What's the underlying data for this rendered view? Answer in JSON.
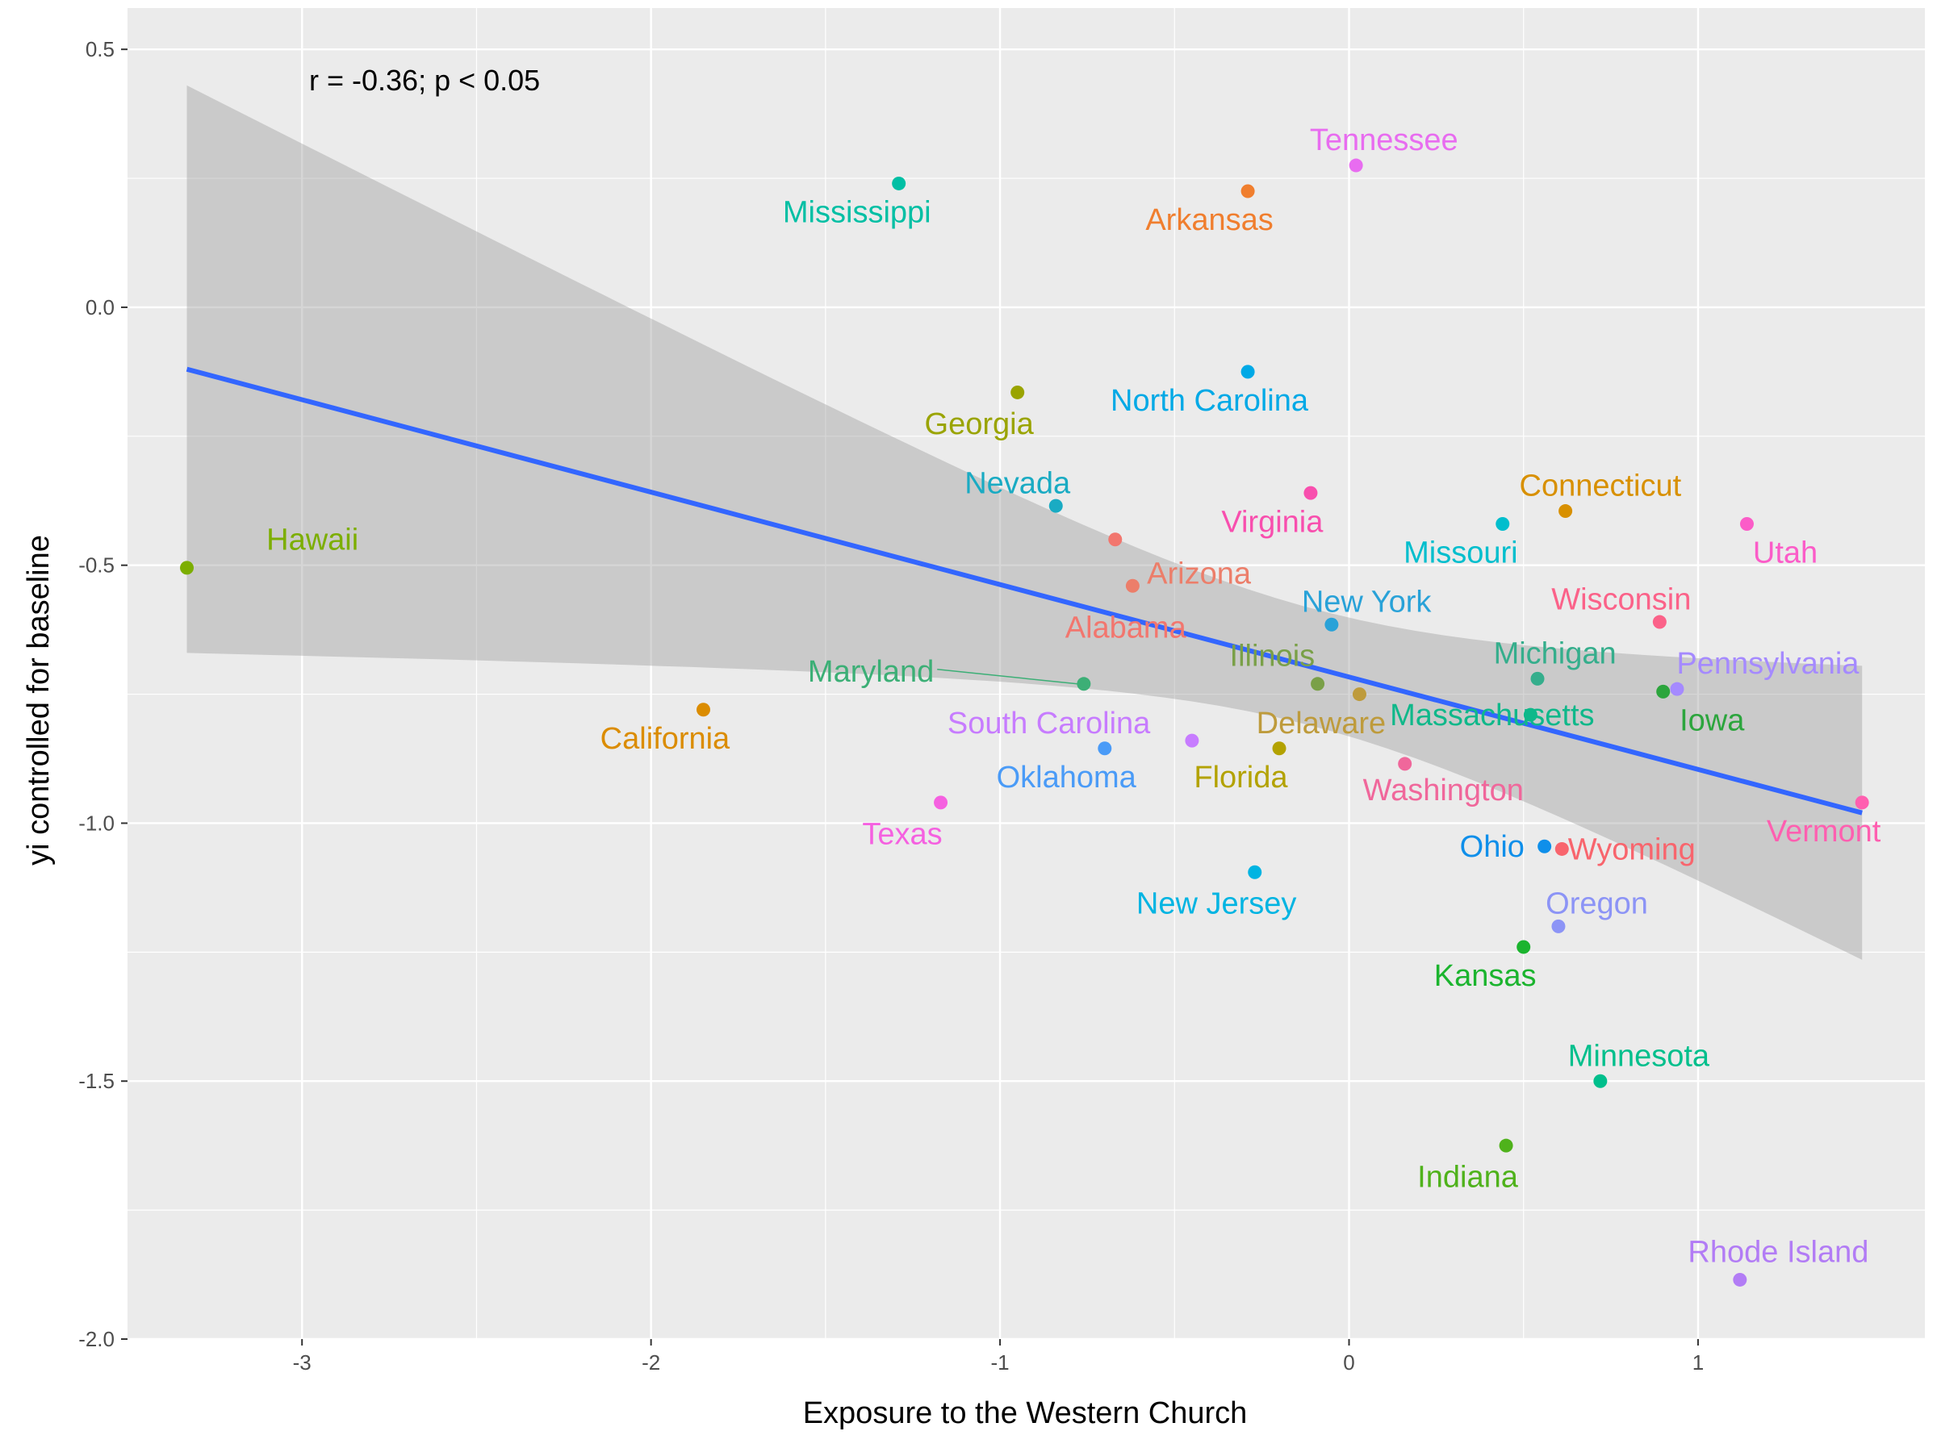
{
  "chart_data": {
    "type": "scatter",
    "title": "",
    "xlabel": "Exposure to the Western Church",
    "ylabel": "yi controlled for baseline",
    "xlim": [
      -3.5,
      1.65
    ],
    "ylim": [
      -2.0,
      0.58
    ],
    "x_ticks": [
      -3,
      -2,
      -1,
      0,
      1
    ],
    "x_tick_labels": [
      "-3",
      "-2",
      "-1",
      "0",
      "1"
    ],
    "y_ticks": [
      -2.0,
      -1.5,
      -1.0,
      -0.5,
      0.0,
      0.5
    ],
    "y_tick_labels": [
      "-2.0",
      "-1.5",
      "-1.0",
      "-0.5",
      "0.0",
      "0.5"
    ],
    "grid": true,
    "annotation": "r = -0.36; p < 0.05",
    "trend": {
      "x": [
        -3.33,
        1.47
      ],
      "y": [
        -0.12,
        -0.98
      ],
      "band_upper_left": 0.43,
      "band_lower_left": -0.67,
      "band_upper_right": -0.7,
      "band_lower_right": -1.27,
      "band_mid_x": 0.0,
      "band_mid_upper": -0.59,
      "band_mid_lower": -0.82,
      "color": "#3366FF",
      "band_color": "#999999"
    },
    "points": [
      {
        "name": "Hawaii",
        "x": -3.33,
        "y": -0.505,
        "color": "#7CAE00",
        "lx": -2.97,
        "ly": -0.45,
        "link": false
      },
      {
        "name": "Mississippi",
        "x": -1.29,
        "y": 0.24,
        "color": "#00BFA4",
        "lx": -1.41,
        "ly": 0.185,
        "link": false
      },
      {
        "name": "Arkansas",
        "x": -0.29,
        "y": 0.225,
        "color": "#F07E2E",
        "lx": -0.4,
        "ly": 0.17,
        "link": false
      },
      {
        "name": "Tennessee",
        "x": 0.02,
        "y": 0.275,
        "color": "#E86CF0",
        "lx": 0.1,
        "ly": 0.325,
        "link": false
      },
      {
        "name": "North Carolina",
        "x": -0.29,
        "y": -0.125,
        "color": "#00A9E6",
        "lx": -0.4,
        "ly": -0.18,
        "link": false
      },
      {
        "name": "Georgia",
        "x": -0.95,
        "y": -0.165,
        "color": "#9AA400",
        "lx": -1.06,
        "ly": -0.225,
        "link": false
      },
      {
        "name": "Nevada",
        "x": -0.84,
        "y": -0.385,
        "color": "#1AABC3",
        "lx": -0.95,
        "ly": -0.34,
        "link": false
      },
      {
        "name": "Virginia",
        "x": -0.11,
        "y": -0.36,
        "color": "#F84FAE",
        "lx": -0.22,
        "ly": -0.415,
        "link": false
      },
      {
        "name": "Connecticut",
        "x": 0.62,
        "y": -0.395,
        "color": "#D89000",
        "lx": 0.72,
        "ly": -0.345,
        "link": false
      },
      {
        "name": "Missouri",
        "x": 0.44,
        "y": -0.42,
        "color": "#00BECD",
        "lx": 0.32,
        "ly": -0.475,
        "link": false
      },
      {
        "name": "Utah",
        "x": 1.14,
        "y": -0.42,
        "color": "#FB5CC8",
        "lx": 1.25,
        "ly": -0.475,
        "link": false
      },
      {
        "name": "Arizona",
        "x": -0.62,
        "y": -0.54,
        "color": "#EC7E6A",
        "lx": -0.43,
        "ly": -0.515,
        "link": false
      },
      {
        "name": "Alabama",
        "x": -0.67,
        "y": -0.45,
        "color": "#F2766E",
        "lx": -0.64,
        "ly": -0.62,
        "link": false
      },
      {
        "name": "New York",
        "x": -0.05,
        "y": -0.615,
        "color": "#29A2D8",
        "lx": 0.05,
        "ly": -0.57,
        "link": false
      },
      {
        "name": "Wisconsin",
        "x": 0.89,
        "y": -0.61,
        "color": "#FB6289",
        "lx": 0.78,
        "ly": -0.565,
        "link": false
      },
      {
        "name": "Illinois",
        "x": -0.09,
        "y": -0.73,
        "color": "#7AA048",
        "lx": -0.22,
        "ly": -0.675,
        "link": false
      },
      {
        "name": "Michigan",
        "x": 0.54,
        "y": -0.72,
        "color": "#35AE8C",
        "lx": 0.59,
        "ly": -0.67,
        "link": false
      },
      {
        "name": "Pennsylvania",
        "x": 0.94,
        "y": -0.74,
        "color": "#A58AFF",
        "lx": 1.2,
        "ly": -0.69,
        "link": false
      },
      {
        "name": "Maryland",
        "x": -0.76,
        "y": -0.73,
        "color": "#3CAF76",
        "lx": -1.18,
        "ly": -0.705,
        "link": true
      },
      {
        "name": "Delaware",
        "x": 0.03,
        "y": -0.75,
        "color": "#BE9B3C",
        "lx": -0.08,
        "ly": -0.805,
        "link": false
      },
      {
        "name": "Iowa",
        "x": 0.9,
        "y": -0.745,
        "color": "#2CA53D",
        "lx": 1.04,
        "ly": -0.8,
        "link": false
      },
      {
        "name": "Massachusetts",
        "x": 0.52,
        "y": -0.79,
        "color": "#0FB88A",
        "lx": 0.41,
        "ly": -0.79,
        "link": false
      },
      {
        "name": "South Carolina",
        "x": -0.45,
        "y": -0.84,
        "color": "#C77CFF",
        "lx": -0.86,
        "ly": -0.805,
        "link": false
      },
      {
        "name": "Florida",
        "x": -0.2,
        "y": -0.855,
        "color": "#B3A200",
        "lx": -0.31,
        "ly": -0.91,
        "link": false
      },
      {
        "name": "Washington",
        "x": 0.16,
        "y": -0.885,
        "color": "#F0679B",
        "lx": 0.27,
        "ly": -0.935,
        "link": false
      },
      {
        "name": "California",
        "x": -1.85,
        "y": -0.78,
        "color": "#DB8C00",
        "lx": -1.96,
        "ly": -0.835,
        "link": false
      },
      {
        "name": "Oklahoma",
        "x": -0.7,
        "y": -0.855,
        "color": "#4A9BF7",
        "lx": -0.81,
        "ly": -0.91,
        "link": false
      },
      {
        "name": "Texas",
        "x": -1.17,
        "y": -0.96,
        "color": "#F560E0",
        "lx": -1.28,
        "ly": -1.02,
        "link": false
      },
      {
        "name": "Vermont",
        "x": 1.47,
        "y": -0.96,
        "color": "#FF5FB0",
        "lx": 1.36,
        "ly": -1.015,
        "link": false
      },
      {
        "name": "Ohio",
        "x": 0.56,
        "y": -1.045,
        "color": "#0F8FEA",
        "lx": 0.41,
        "ly": -1.045,
        "link": false
      },
      {
        "name": "Wyoming",
        "x": 0.61,
        "y": -1.05,
        "color": "#F8656D",
        "lx": 0.81,
        "ly": -1.05,
        "link": false
      },
      {
        "name": "New Jersey",
        "x": -0.27,
        "y": -1.095,
        "color": "#00B4E2",
        "lx": -0.38,
        "ly": -1.155,
        "link": false
      },
      {
        "name": "Oregon",
        "x": 0.6,
        "y": -1.2,
        "color": "#8C94F6",
        "lx": 0.71,
        "ly": -1.155,
        "link": false
      },
      {
        "name": "Kansas",
        "x": 0.5,
        "y": -1.24,
        "color": "#1BB42E",
        "lx": 0.39,
        "ly": -1.295,
        "link": false
      },
      {
        "name": "Minnesota",
        "x": 0.72,
        "y": -1.5,
        "color": "#00BF8C",
        "lx": 0.83,
        "ly": -1.45,
        "link": false
      },
      {
        "name": "Indiana",
        "x": 0.45,
        "y": -1.625,
        "color": "#4FB21B",
        "lx": 0.34,
        "ly": -1.685,
        "link": false
      },
      {
        "name": "Rhode Island",
        "x": 1.12,
        "y": -1.885,
        "color": "#B27CF5",
        "lx": 1.23,
        "ly": -1.83,
        "link": false
      }
    ]
  }
}
